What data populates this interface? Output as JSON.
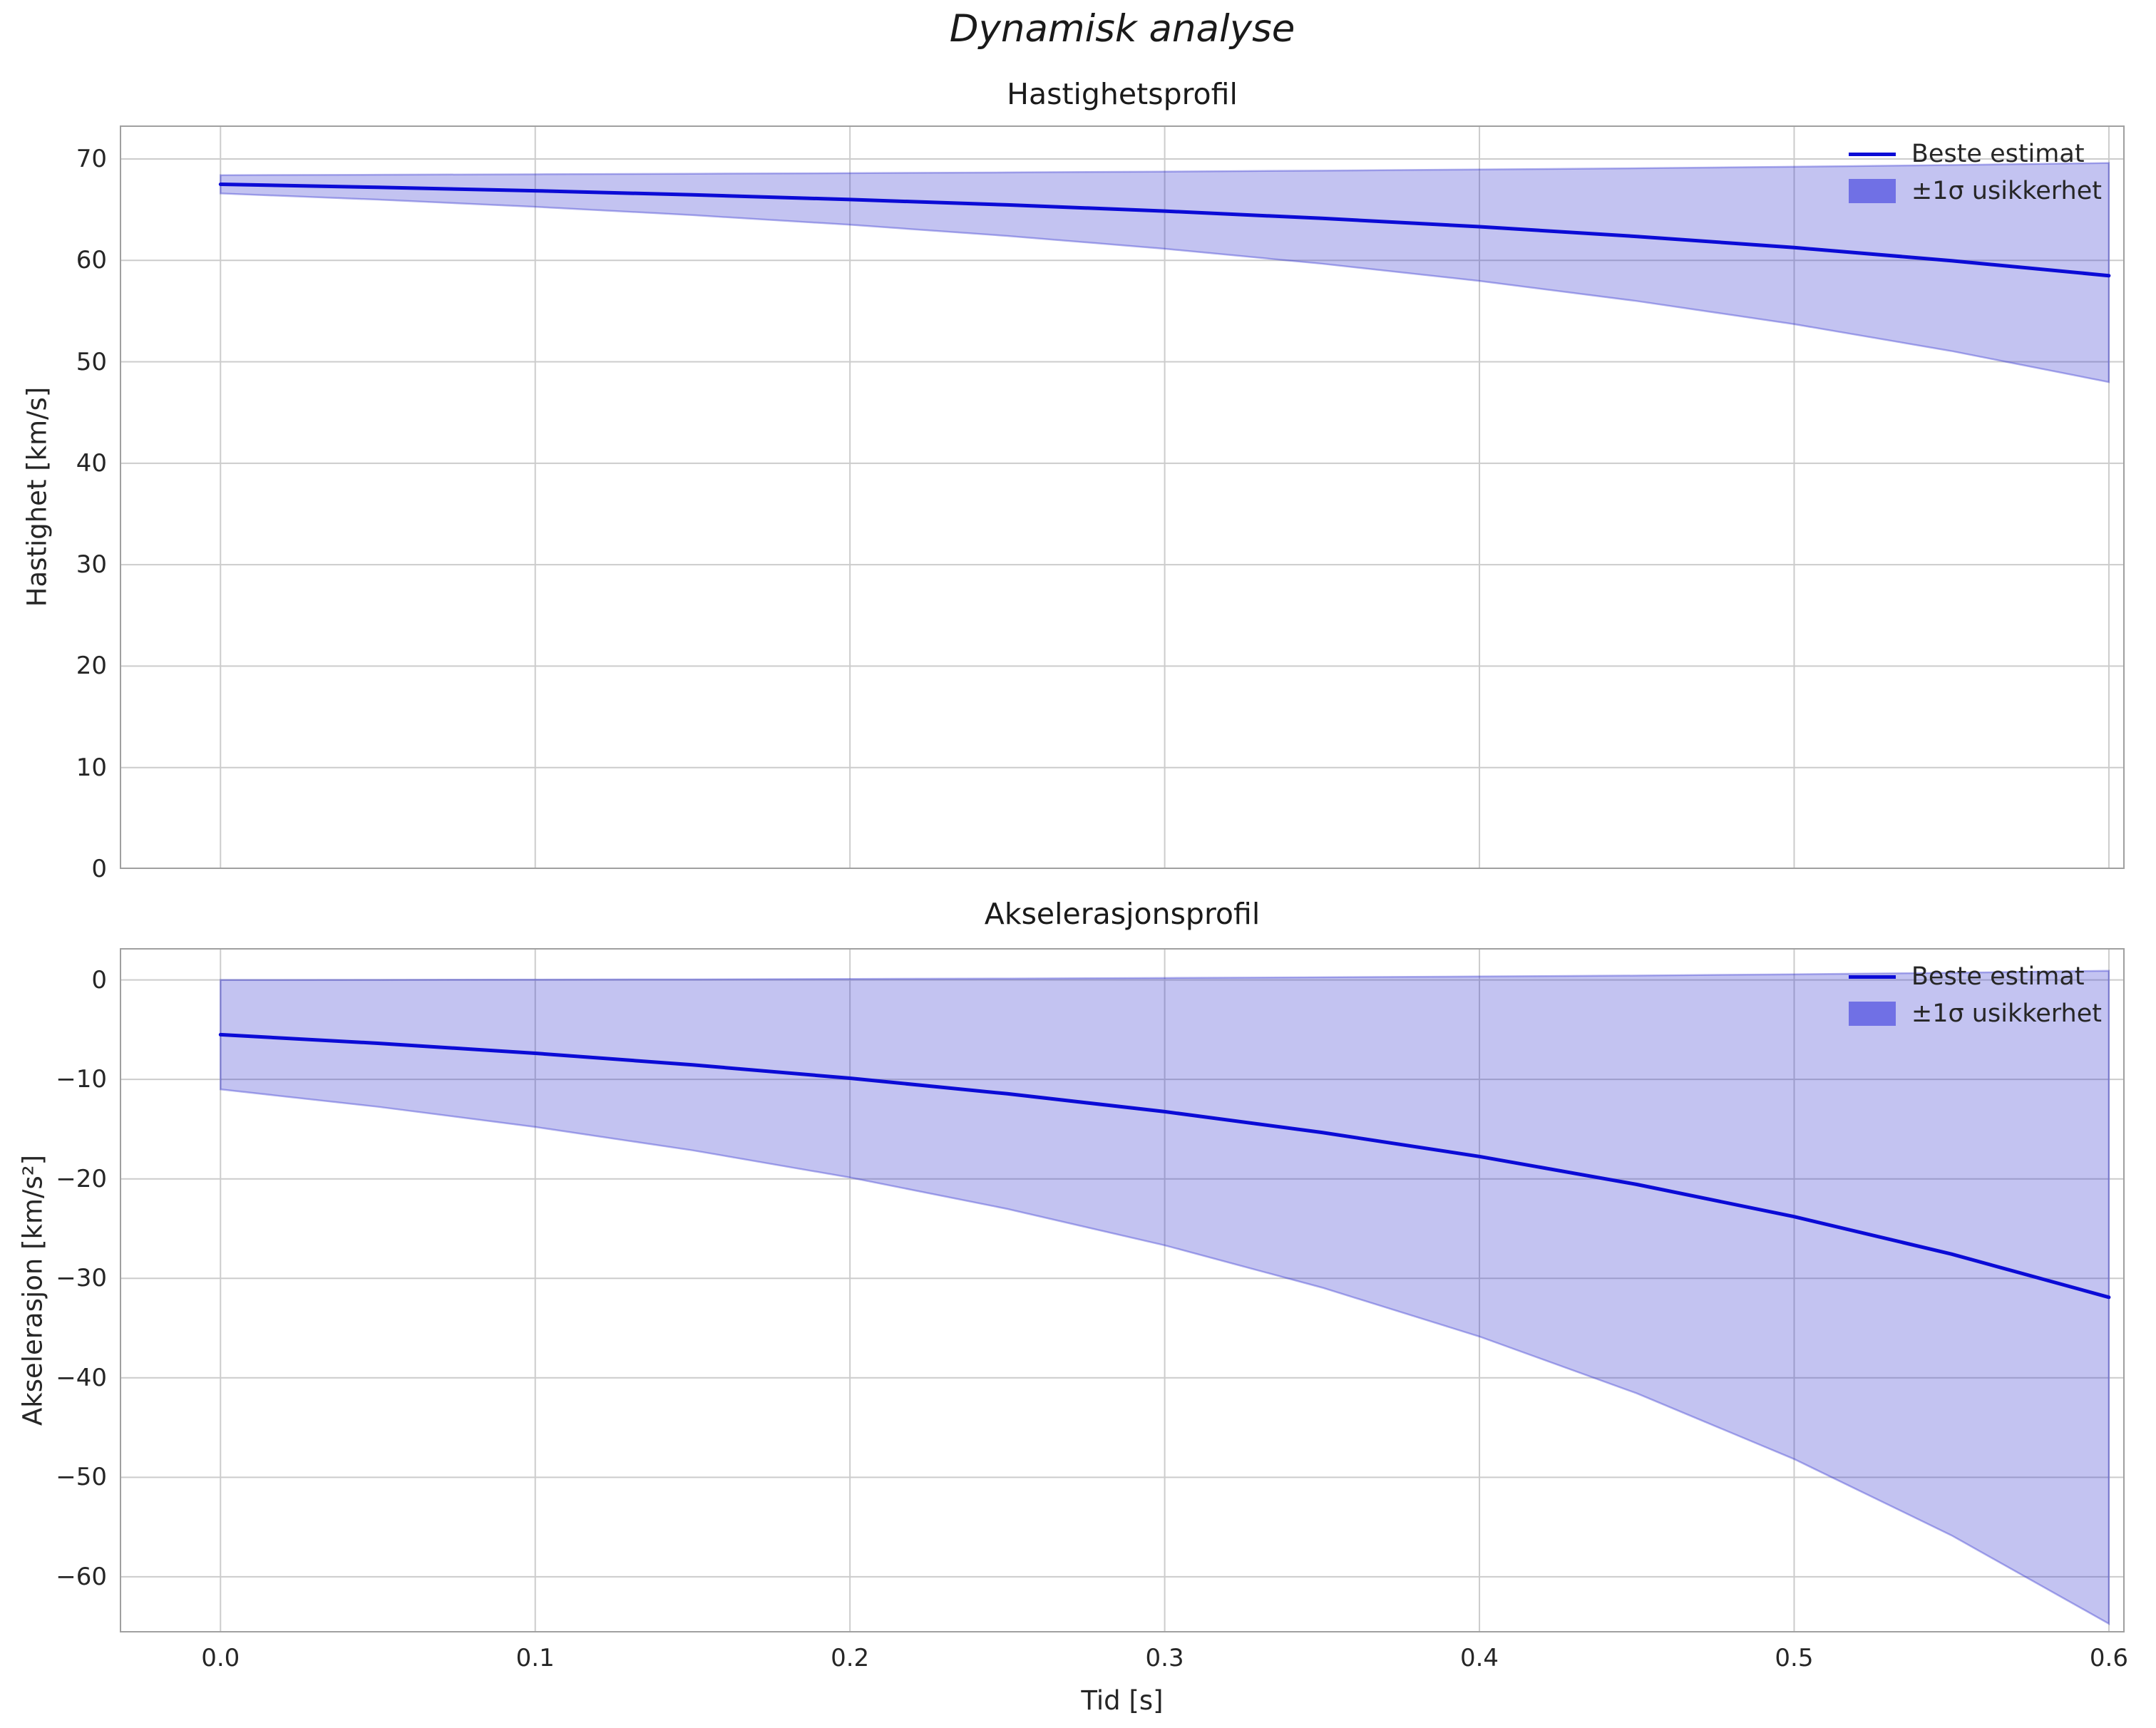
{
  "figure": {
    "title": "Dynamisk analyse",
    "xlabel": "Tid [s]"
  },
  "colors": {
    "line": "#0b0bd6",
    "band": "#2222cc",
    "grid": "#cccccc",
    "axes_border": "#a0a0a0",
    "text": "#262626"
  },
  "chart_data": [
    {
      "type": "line",
      "title": "Hastighetsprofil",
      "ylabel": "Hastighet [km/s]",
      "xlabel": "",
      "x": [
        0,
        0.05,
        0.1,
        0.15,
        0.2,
        0.25,
        0.3,
        0.35,
        0.4,
        0.45,
        0.5,
        0.55,
        0.6
      ],
      "series": [
        {
          "name": "Beste estimat",
          "values": [
            67.5,
            67.2,
            66.86,
            66.46,
            66.0,
            65.47,
            64.86,
            64.14,
            63.32,
            62.36,
            61.26,
            59.97,
            58.49
          ]
        },
        {
          "name": "+1σ",
          "values": [
            68.4,
            68.44,
            68.49,
            68.54,
            68.6,
            68.67,
            68.75,
            68.85,
            68.96,
            69.08,
            69.23,
            69.4,
            69.6
          ]
        },
        {
          "name": "−1σ",
          "values": [
            66.6,
            65.99,
            65.28,
            64.46,
            63.51,
            62.41,
            61.14,
            59.67,
            57.97,
            55.99,
            53.71,
            51.06,
            48.0
          ]
        }
      ],
      "legend_entries": [
        "Beste estimat",
        "±1σ usikkerhet"
      ],
      "legend_position": "upper right",
      "grid": true,
      "xlim": [
        -0.032,
        0.605
      ],
      "ylim": [
        0,
        73.3
      ],
      "yticks": [
        0,
        10,
        20,
        30,
        40,
        50,
        60,
        70
      ],
      "ytick_labels": [
        "0",
        "10",
        "20",
        "30",
        "40",
        "50",
        "60",
        "70"
      ],
      "xticks": [
        0,
        0.1,
        0.2,
        0.3,
        0.4,
        0.5,
        0.6
      ],
      "xtick_labels": null
    },
    {
      "type": "line",
      "title": "Akselerasjonsprofil",
      "ylabel": "Akselerasjon [km/s²]",
      "xlabel": "Tid [s]",
      "x": [
        0,
        0.05,
        0.1,
        0.15,
        0.2,
        0.25,
        0.3,
        0.35,
        0.4,
        0.45,
        0.5,
        0.55,
        0.6
      ],
      "series": [
        {
          "name": "Beste estimat",
          "values": [
            -5.5,
            -6.37,
            -7.37,
            -8.54,
            -9.88,
            -11.44,
            -13.24,
            -15.33,
            -17.75,
            -20.56,
            -23.8,
            -27.56,
            -31.9
          ]
        },
        {
          "name": "+1σ",
          "values": [
            0.0,
            0.01,
            0.04,
            0.06,
            0.1,
            0.14,
            0.2,
            0.27,
            0.35,
            0.44,
            0.57,
            0.72,
            0.92
          ]
        },
        {
          "name": "−1σ",
          "values": [
            -11.0,
            -12.75,
            -14.78,
            -17.13,
            -19.86,
            -23.02,
            -26.68,
            -30.93,
            -35.85,
            -41.56,
            -48.17,
            -55.84,
            -64.72
          ]
        }
      ],
      "legend_entries": [
        "Beste estimat",
        "±1σ usikkerhet"
      ],
      "legend_position": "upper right",
      "grid": true,
      "xlim": [
        -0.032,
        0.605
      ],
      "ylim": [
        -65.6,
        3.2
      ],
      "yticks": [
        0,
        -10,
        -20,
        -30,
        -40,
        -50,
        -60
      ],
      "ytick_labels": [
        "0",
        "−10",
        "−20",
        "−30",
        "−40",
        "−50",
        "−60"
      ],
      "xticks": [
        0,
        0.1,
        0.2,
        0.3,
        0.4,
        0.5,
        0.6
      ],
      "xtick_labels": [
        "0.0",
        "0.1",
        "0.2",
        "0.3",
        "0.4",
        "0.5",
        "0.6"
      ]
    }
  ]
}
